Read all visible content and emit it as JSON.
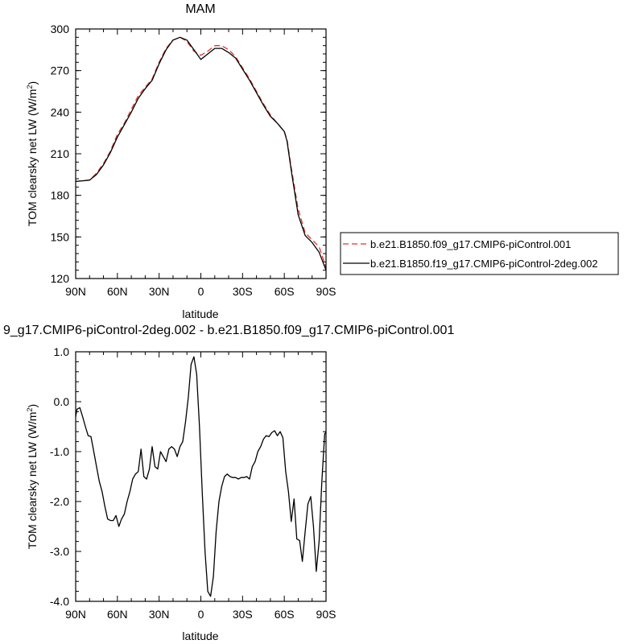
{
  "chart_data": [
    {
      "type": "line",
      "title": "MAM",
      "xlabel": "latitude",
      "ylabel_main": "TOM clearsky net LW (W/m",
      "ylabel_sup": "2",
      "ylabel_close": ")",
      "xlim": [
        90,
        -90
      ],
      "ylim": [
        120,
        300
      ],
      "x_ticks": [
        {
          "value": 90,
          "label": "90N"
        },
        {
          "value": 60,
          "label": "60N"
        },
        {
          "value": 30,
          "label": "30N"
        },
        {
          "value": 0,
          "label": "0"
        },
        {
          "value": -30,
          "label": "30S"
        },
        {
          "value": -60,
          "label": "60S"
        },
        {
          "value": -90,
          "label": "90S"
        }
      ],
      "y_ticks": [
        {
          "value": 300,
          "label": "300"
        },
        {
          "value": 270,
          "label": "270"
        },
        {
          "value": 240,
          "label": "240"
        },
        {
          "value": 210,
          "label": "210"
        },
        {
          "value": 180,
          "label": "180"
        },
        {
          "value": 150,
          "label": "150"
        },
        {
          "value": 120,
          "label": "120"
        }
      ],
      "x": [
        90,
        85,
        80,
        75,
        70,
        65,
        60,
        55,
        50,
        45,
        40,
        35,
        30,
        25,
        20,
        15,
        10,
        5,
        0,
        -5,
        -10,
        -15,
        -20,
        -25,
        -30,
        -35,
        -40,
        -45,
        -50,
        -55,
        -60,
        -62,
        -65,
        -70,
        -75,
        -80,
        -85,
        -90
      ],
      "series": [
        {
          "name": "b.e21.B1850.f09_g17.CMIP6-piControl.001",
          "color": "#e0332d",
          "dash": true,
          "values": [
            190,
            190.5,
            191,
            196,
            203,
            212,
            224,
            232,
            242,
            252,
            258,
            264,
            276,
            286,
            292,
            294,
            291,
            284,
            281,
            284,
            288,
            288,
            285,
            280,
            272,
            264,
            255,
            246,
            238,
            232,
            226,
            220,
            200,
            170,
            153,
            148,
            143,
            128
          ]
        },
        {
          "name": "b.e21.B1850.f19_g17.CMIP6-piControl-2deg.002",
          "color": "#000000",
          "dash": false,
          "values": [
            190,
            190.5,
            191,
            195,
            202,
            211,
            222,
            231,
            240,
            250,
            257,
            263,
            275,
            285,
            292,
            294,
            292,
            285,
            278,
            282,
            286,
            286,
            283,
            279,
            271,
            263,
            254,
            245,
            237,
            232,
            226,
            219,
            198,
            166,
            151,
            146,
            139,
            126
          ]
        }
      ]
    },
    {
      "type": "line",
      "title": "9_g17.CMIP6-piControl-2deg.002 - b.e21.B1850.f09_g17.CMIP6-piControl.001",
      "xlabel": "latitude",
      "ylabel_main": "TOM clearsky net LW (W/m",
      "ylabel_sup": "2",
      "ylabel_close": ")",
      "xlim": [
        90,
        -90
      ],
      "ylim": [
        -4.0,
        1.0
      ],
      "x_ticks": [
        {
          "value": 90,
          "label": "90N"
        },
        {
          "value": 60,
          "label": "60N"
        },
        {
          "value": 30,
          "label": "30N"
        },
        {
          "value": 0,
          "label": "0"
        },
        {
          "value": -30,
          "label": "30S"
        },
        {
          "value": -60,
          "label": "60S"
        },
        {
          "value": -90,
          "label": "90S"
        }
      ],
      "y_ticks": [
        {
          "value": 1.0,
          "label": "1.0"
        },
        {
          "value": 0.0,
          "label": "0.0"
        },
        {
          "value": -1.0,
          "label": "-1.0"
        },
        {
          "value": -2.0,
          "label": "-2.0"
        },
        {
          "value": -3.0,
          "label": "-3.0"
        },
        {
          "value": -4.0,
          "label": "-4.0"
        }
      ],
      "x": [
        90,
        89,
        87,
        85,
        83,
        81,
        79,
        77,
        75,
        73,
        71,
        69,
        67,
        65,
        63,
        61,
        59,
        57,
        55,
        53,
        51,
        49,
        47,
        45,
        43,
        41,
        39,
        37,
        35,
        33,
        31,
        29,
        27,
        25,
        23,
        21,
        19,
        17,
        15,
        13,
        11,
        9,
        7,
        5,
        3,
        1,
        -1,
        -3,
        -5,
        -7,
        -9,
        -11,
        -13,
        -15,
        -17,
        -19,
        -21,
        -23,
        -25,
        -27,
        -29,
        -31,
        -33,
        -35,
        -37,
        -39,
        -41,
        -43,
        -45,
        -47,
        -49,
        -51,
        -53,
        -55,
        -57,
        -59,
        -61,
        -63,
        -65,
        -67,
        -69,
        -71,
        -73,
        -75,
        -77,
        -79,
        -81,
        -83,
        -85,
        -87,
        -89,
        -90
      ],
      "series": [
        {
          "name": "",
          "color": "#000000",
          "dash": false,
          "values": [
            -0.3,
            -0.15,
            -0.12,
            -0.3,
            -0.5,
            -0.68,
            -0.7,
            -1.0,
            -1.3,
            -1.6,
            -1.8,
            -2.1,
            -2.35,
            -2.38,
            -2.38,
            -2.28,
            -2.5,
            -2.35,
            -2.25,
            -2.0,
            -1.8,
            -1.55,
            -1.45,
            -1.4,
            -0.95,
            -1.5,
            -1.55,
            -1.35,
            -0.9,
            -1.3,
            -1.35,
            -1.0,
            -1.1,
            -1.2,
            -0.95,
            -0.9,
            -0.95,
            -1.1,
            -0.9,
            -0.8,
            -0.4,
            0.1,
            0.75,
            0.9,
            0.55,
            -0.5,
            -1.8,
            -3.0,
            -3.8,
            -3.9,
            -3.5,
            -2.6,
            -2.0,
            -1.7,
            -1.5,
            -1.45,
            -1.5,
            -1.52,
            -1.52,
            -1.55,
            -1.52,
            -1.52,
            -1.5,
            -1.55,
            -1.3,
            -1.2,
            -1.0,
            -0.9,
            -0.75,
            -0.68,
            -0.7,
            -0.62,
            -0.58,
            -0.68,
            -0.6,
            -0.72,
            -1.4,
            -1.8,
            -2.4,
            -1.95,
            -2.75,
            -2.78,
            -3.2,
            -2.6,
            -2.05,
            -1.9,
            -2.5,
            -3.4,
            -2.8,
            -1.6,
            -0.65,
            -0.6
          ]
        }
      ]
    }
  ]
}
